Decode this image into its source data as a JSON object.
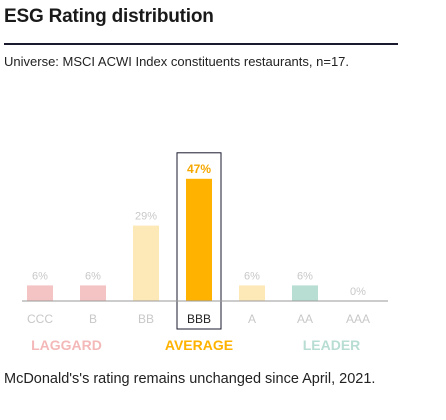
{
  "title": "ESG Rating distribution",
  "subtitle": "Universe: MSCI ACWI Index constituents restaurants, n=17.",
  "footnote": "McDonald's's rating remains unchanged since April, 2021.",
  "chart_data": {
    "type": "bar",
    "categories": [
      "CCC",
      "B",
      "BB",
      "BBB",
      "A",
      "AA",
      "AAA"
    ],
    "values": [
      6,
      6,
      29,
      47,
      6,
      6,
      0
    ],
    "value_labels": [
      "6%",
      "6%",
      "29%",
      "47%",
      "6%",
      "6%",
      "0%"
    ],
    "highlight_category": "BBB",
    "bar_colors": [
      "#f4c4c4",
      "#f4c4c4",
      "#fde8b8",
      "#ffb300",
      "#fde8b8",
      "#b8ddd3",
      "#b8ddd3"
    ],
    "groups": [
      {
        "label": "LAGGARD",
        "color": "#f4b8b8",
        "categories": [
          "CCC",
          "B"
        ]
      },
      {
        "label": "AVERAGE",
        "color": "#ffb300",
        "categories": [
          "BB",
          "BBB",
          "A"
        ]
      },
      {
        "label": "LEADER",
        "color": "#b8ddd3",
        "categories": [
          "AA",
          "AAA"
        ]
      }
    ],
    "ylim": [
      0,
      50
    ]
  }
}
